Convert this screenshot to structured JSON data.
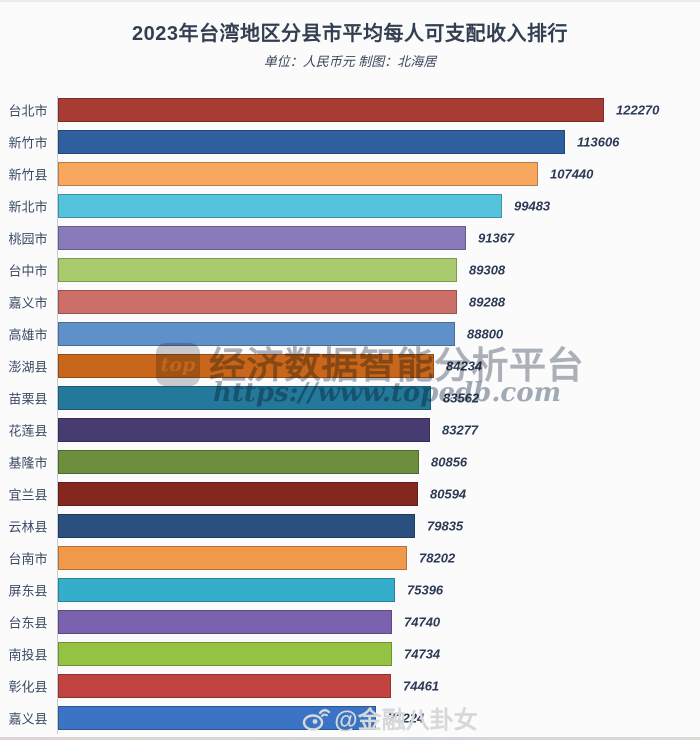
{
  "chart_data": {
    "type": "bar",
    "orientation": "horizontal",
    "title": "2023年台湾地区分县市平均每人可支配收入排行",
    "subtitle": "单位：人民币元  制图：北海居",
    "categories": [
      "台北市",
      "新竹市",
      "新竹县",
      "新北市",
      "桃园市",
      "台中市",
      "嘉义市",
      "高雄市",
      "澎湖县",
      "苗栗县",
      "花莲县",
      "基隆市",
      "宜兰县",
      "云林县",
      "台南市",
      "屏东县",
      "台东县",
      "南投县",
      "彰化县",
      "嘉义县"
    ],
    "values": [
      122270,
      113606,
      107440,
      99483,
      91367,
      89308,
      89288,
      88800,
      84234,
      83562,
      83277,
      80856,
      80594,
      79835,
      78202,
      75396,
      74740,
      74734,
      74461,
      71224
    ],
    "colors": [
      "#A83B34",
      "#2F5F9F",
      "#F8A75F",
      "#55C3DB",
      "#897AB9",
      "#A9CB6D",
      "#CC6F68",
      "#6090C8",
      "#C8671B",
      "#24799B",
      "#473C72",
      "#6C8F3E",
      "#84281F",
      "#2B4F7E",
      "#F0994B",
      "#35AECC",
      "#7B62AE",
      "#94C344",
      "#C04340",
      "#3B74C4"
    ],
    "xlim": [
      0,
      130000
    ],
    "value_labels": true,
    "grid": false,
    "legend": false
  },
  "watermark_center": {
    "logo_text": "top",
    "line1": "经济数据智能分析平台",
    "line2": "https://www.topedb.com"
  },
  "watermark_bottom": {
    "text": "@金融八卦女",
    "icon": "weibo-icon"
  },
  "style": {
    "title_color": "#333F50",
    "label_color": "#3C4A63",
    "value_color": "#2C3A55",
    "axis_color": "#C7CBD2",
    "background": "#FBFBFC"
  }
}
